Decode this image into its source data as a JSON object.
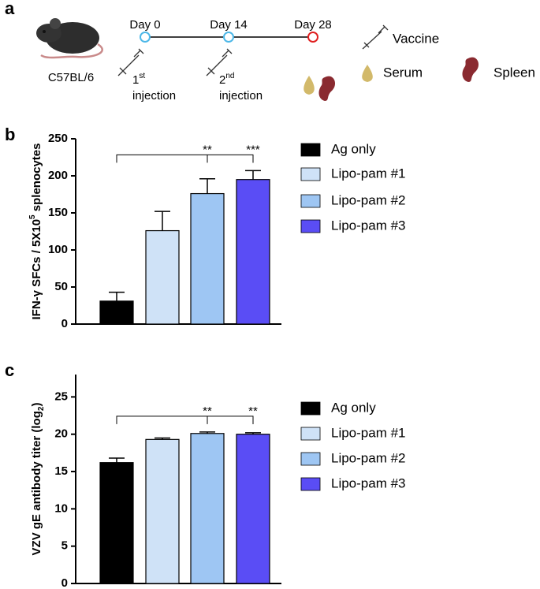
{
  "panel_a": {
    "panel": "a",
    "strain": "C57BL/6",
    "days": [
      "Day 0",
      "Day 14",
      "Day 28"
    ],
    "injections": [
      {
        "ordinal": "1",
        "suffix": "st",
        "text": "injection"
      },
      {
        "ordinal": "2",
        "suffix": "nd",
        "text": "injection"
      }
    ],
    "legend": [
      "Vaccine",
      "Serum",
      "Spleen"
    ]
  },
  "chart_data": [
    {
      "type": "bar",
      "panel": "b",
      "ylabel": [
        "IFN-γ SFCs / 5X10",
        "5",
        " splenocytes"
      ],
      "categories": [
        "Ag only",
        "Lipo-pam #1",
        "Lipo-pam #2",
        "Lipo-pam #3"
      ],
      "values": [
        31,
        126,
        176,
        195
      ],
      "errors": [
        12,
        26,
        20,
        12
      ],
      "colors": [
        "#000000",
        "#cfe2f7",
        "#9ec6f3",
        "#5a4df5"
      ],
      "annotations": [
        null,
        null,
        "**",
        "***"
      ],
      "ylim": [
        0,
        250
      ],
      "yticks": [
        0,
        50,
        100,
        150,
        200,
        250
      ]
    },
    {
      "type": "bar",
      "panel": "c",
      "ylabel": [
        "VZV gE antibody titer (log",
        "2",
        ")"
      ],
      "categories": [
        "Ag only",
        "Lipo-pam #1",
        "Lipo-pam #2",
        "Lipo-pam #3"
      ],
      "values": [
        16.2,
        19.3,
        20.1,
        20.0
      ],
      "errors": [
        0.6,
        0.2,
        0.2,
        0.2
      ],
      "colors": [
        "#000000",
        "#cfe2f7",
        "#9ec6f3",
        "#5a4df5"
      ],
      "annotations": [
        null,
        null,
        "**",
        "**"
      ],
      "ylim": [
        0,
        28
      ],
      "yticks": [
        0,
        5,
        10,
        15,
        20,
        25
      ]
    }
  ]
}
